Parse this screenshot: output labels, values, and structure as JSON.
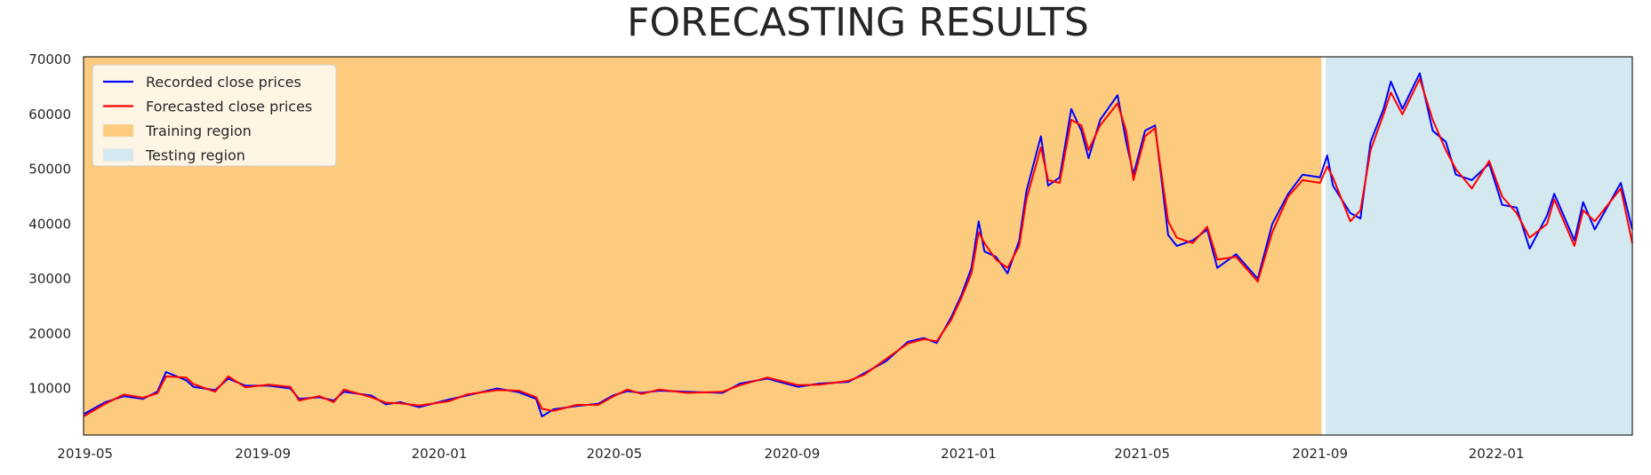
{
  "chart_data": {
    "type": "line",
    "title": "FORECASTING RESULTS",
    "xlabel": "",
    "ylabel": "",
    "x_range": [
      "2019-04-30",
      "2022-04-05"
    ],
    "ylim": [
      1500,
      70500
    ],
    "x_ticks": [
      "2019-05",
      "2019-09",
      "2020-01",
      "2020-05",
      "2020-09",
      "2021-01",
      "2021-05",
      "2021-09",
      "2022-01"
    ],
    "y_ticks": [
      10000,
      20000,
      30000,
      40000,
      50000,
      60000,
      70000
    ],
    "grid": false,
    "legend_position": "top-left",
    "regions": [
      {
        "name": "Training region",
        "start": "2019-04-30",
        "end": "2021-09-02",
        "color": "#fdcb7e"
      },
      {
        "name": "Testing region",
        "start": "2021-09-05",
        "end": "2022-04-05",
        "color": "#d3e8ef"
      }
    ],
    "region_gap_color": "#ffffff",
    "series": [
      {
        "name": "Recorded close prices",
        "color": "#0000ff",
        "points": [
          [
            "2019-04-30",
            5300
          ],
          [
            "2019-05-15",
            7500
          ],
          [
            "2019-05-28",
            8600
          ],
          [
            "2019-06-10",
            8100
          ],
          [
            "2019-06-20",
            9400
          ],
          [
            "2019-06-26",
            13000
          ],
          [
            "2019-07-10",
            11500
          ],
          [
            "2019-07-15",
            10300
          ],
          [
            "2019-07-30",
            9700
          ],
          [
            "2019-08-08",
            11800
          ],
          [
            "2019-08-20",
            10500
          ],
          [
            "2019-09-05",
            10500
          ],
          [
            "2019-09-20",
            10000
          ],
          [
            "2019-09-26",
            8100
          ],
          [
            "2019-10-10",
            8400
          ],
          [
            "2019-10-20",
            7800
          ],
          [
            "2019-10-27",
            9400
          ],
          [
            "2019-11-15",
            8700
          ],
          [
            "2019-11-25",
            7100
          ],
          [
            "2019-12-05",
            7500
          ],
          [
            "2019-12-18",
            6600
          ],
          [
            "2020-01-08",
            8000
          ],
          [
            "2020-01-20",
            8700
          ],
          [
            "2020-02-10",
            10000
          ],
          [
            "2020-02-25",
            9300
          ],
          [
            "2020-03-08",
            8100
          ],
          [
            "2020-03-12",
            4900
          ],
          [
            "2020-03-20",
            6200
          ],
          [
            "2020-04-05",
            6800
          ],
          [
            "2020-04-20",
            7200
          ],
          [
            "2020-04-30",
            8700
          ],
          [
            "2020-05-10",
            9500
          ],
          [
            "2020-05-20",
            9200
          ],
          [
            "2020-06-01",
            9600
          ],
          [
            "2020-06-20",
            9400
          ],
          [
            "2020-07-15",
            9200
          ],
          [
            "2020-07-27",
            10900
          ],
          [
            "2020-08-15",
            11800
          ],
          [
            "2020-09-05",
            10300
          ],
          [
            "2020-09-20",
            10900
          ],
          [
            "2020-10-10",
            11200
          ],
          [
            "2020-10-21",
            12800
          ],
          [
            "2020-11-05",
            15000
          ],
          [
            "2020-11-20",
            18500
          ],
          [
            "2020-12-01",
            19200
          ],
          [
            "2020-12-10",
            18300
          ],
          [
            "2020-12-20",
            23000
          ],
          [
            "2020-12-27",
            27000
          ],
          [
            "2021-01-03",
            32000
          ],
          [
            "2021-01-08",
            40500
          ],
          [
            "2021-01-12",
            35000
          ],
          [
            "2021-01-20",
            34000
          ],
          [
            "2021-01-28",
            31000
          ],
          [
            "2021-02-05",
            37000
          ],
          [
            "2021-02-10",
            46000
          ],
          [
            "2021-02-20",
            56000
          ],
          [
            "2021-02-25",
            47000
          ],
          [
            "2021-03-05",
            48500
          ],
          [
            "2021-03-13",
            61000
          ],
          [
            "2021-03-20",
            57000
          ],
          [
            "2021-03-25",
            52000
          ],
          [
            "2021-04-02",
            59000
          ],
          [
            "2021-04-14",
            63500
          ],
          [
            "2021-04-20",
            55000
          ],
          [
            "2021-04-25",
            49000
          ],
          [
            "2021-05-03",
            57000
          ],
          [
            "2021-05-10",
            58000
          ],
          [
            "2021-05-19",
            38000
          ],
          [
            "2021-05-25",
            36000
          ],
          [
            "2021-06-05",
            37000
          ],
          [
            "2021-06-15",
            39000
          ],
          [
            "2021-06-22",
            32000
          ],
          [
            "2021-07-05",
            34500
          ],
          [
            "2021-07-20",
            30000
          ],
          [
            "2021-07-30",
            40000
          ],
          [
            "2021-08-10",
            45500
          ],
          [
            "2021-08-20",
            49000
          ],
          [
            "2021-09-01",
            48500
          ],
          [
            "2021-09-06",
            52500
          ],
          [
            "2021-09-10",
            47000
          ],
          [
            "2021-09-22",
            42000
          ],
          [
            "2021-09-29",
            41000
          ],
          [
            "2021-10-06",
            55000
          ],
          [
            "2021-10-15",
            61000
          ],
          [
            "2021-10-20",
            66000
          ],
          [
            "2021-10-28",
            61000
          ],
          [
            "2021-11-09",
            67500
          ],
          [
            "2021-11-18",
            57000
          ],
          [
            "2021-11-27",
            55000
          ],
          [
            "2021-12-04",
            49000
          ],
          [
            "2021-12-15",
            48000
          ],
          [
            "2021-12-27",
            51000
          ],
          [
            "2022-01-05",
            43500
          ],
          [
            "2022-01-15",
            43000
          ],
          [
            "2022-01-24",
            35500
          ],
          [
            "2022-02-05",
            41500
          ],
          [
            "2022-02-10",
            45500
          ],
          [
            "2022-02-24",
            37000
          ],
          [
            "2022-03-02",
            44000
          ],
          [
            "2022-03-10",
            39000
          ],
          [
            "2022-03-28",
            47500
          ],
          [
            "2022-04-05",
            39000
          ]
        ]
      },
      {
        "name": "Forecasted close prices",
        "color": "#ff0000",
        "points": [
          [
            "2019-04-30",
            4900
          ],
          [
            "2019-05-15",
            7200
          ],
          [
            "2019-05-28",
            8900
          ],
          [
            "2019-06-10",
            8300
          ],
          [
            "2019-06-20",
            9100
          ],
          [
            "2019-06-26",
            12200
          ],
          [
            "2019-07-10",
            12000
          ],
          [
            "2019-07-15",
            10800
          ],
          [
            "2019-07-30",
            9400
          ],
          [
            "2019-08-08",
            12200
          ],
          [
            "2019-08-20",
            10200
          ],
          [
            "2019-09-05",
            10700
          ],
          [
            "2019-09-20",
            10300
          ],
          [
            "2019-09-26",
            7800
          ],
          [
            "2019-10-10",
            8600
          ],
          [
            "2019-10-20",
            7500
          ],
          [
            "2019-10-27",
            9800
          ],
          [
            "2019-11-15",
            8400
          ],
          [
            "2019-11-25",
            7400
          ],
          [
            "2019-12-05",
            7300
          ],
          [
            "2019-12-18",
            6900
          ],
          [
            "2020-01-08",
            7700
          ],
          [
            "2020-01-20",
            8900
          ],
          [
            "2020-02-10",
            9700
          ],
          [
            "2020-02-25",
            9600
          ],
          [
            "2020-03-08",
            8400
          ],
          [
            "2020-03-12",
            6300
          ],
          [
            "2020-03-20",
            5900
          ],
          [
            "2020-04-05",
            7000
          ],
          [
            "2020-04-20",
            7000
          ],
          [
            "2020-04-30",
            8500
          ],
          [
            "2020-05-10",
            9800
          ],
          [
            "2020-05-20",
            9000
          ],
          [
            "2020-06-01",
            9800
          ],
          [
            "2020-06-20",
            9200
          ],
          [
            "2020-07-15",
            9400
          ],
          [
            "2020-07-27",
            10600
          ],
          [
            "2020-08-15",
            12000
          ],
          [
            "2020-09-05",
            10600
          ],
          [
            "2020-09-20",
            10700
          ],
          [
            "2020-10-10",
            11400
          ],
          [
            "2020-10-21",
            12500
          ],
          [
            "2020-11-05",
            15400
          ],
          [
            "2020-11-20",
            18200
          ],
          [
            "2020-12-01",
            19000
          ],
          [
            "2020-12-10",
            18600
          ],
          [
            "2020-12-20",
            22500
          ],
          [
            "2020-12-27",
            26500
          ],
          [
            "2021-01-03",
            31000
          ],
          [
            "2021-01-08",
            38500
          ],
          [
            "2021-01-12",
            36500
          ],
          [
            "2021-01-20",
            33500
          ],
          [
            "2021-01-28",
            32000
          ],
          [
            "2021-02-05",
            36000
          ],
          [
            "2021-02-10",
            44500
          ],
          [
            "2021-02-20",
            54000
          ],
          [
            "2021-02-25",
            48000
          ],
          [
            "2021-03-05",
            47500
          ],
          [
            "2021-03-13",
            59000
          ],
          [
            "2021-03-20",
            58000
          ],
          [
            "2021-03-25",
            53500
          ],
          [
            "2021-04-02",
            58000
          ],
          [
            "2021-04-14",
            62000
          ],
          [
            "2021-04-20",
            57000
          ],
          [
            "2021-04-25",
            48000
          ],
          [
            "2021-05-03",
            56000
          ],
          [
            "2021-05-10",
            57500
          ],
          [
            "2021-05-19",
            40500
          ],
          [
            "2021-05-25",
            37500
          ],
          [
            "2021-06-05",
            36500
          ],
          [
            "2021-06-15",
            39500
          ],
          [
            "2021-06-22",
            33500
          ],
          [
            "2021-07-05",
            34000
          ],
          [
            "2021-07-20",
            29500
          ],
          [
            "2021-07-30",
            38500
          ],
          [
            "2021-08-10",
            45000
          ],
          [
            "2021-08-20",
            48000
          ],
          [
            "2021-09-01",
            47500
          ],
          [
            "2021-09-06",
            50500
          ],
          [
            "2021-09-10",
            48500
          ],
          [
            "2021-09-22",
            40500
          ],
          [
            "2021-09-29",
            42500
          ],
          [
            "2021-10-06",
            53500
          ],
          [
            "2021-10-15",
            60000
          ],
          [
            "2021-10-20",
            64000
          ],
          [
            "2021-10-28",
            60000
          ],
          [
            "2021-11-09",
            66500
          ],
          [
            "2021-11-18",
            59000
          ],
          [
            "2021-11-27",
            53500
          ],
          [
            "2021-12-04",
            50000
          ],
          [
            "2021-12-15",
            46500
          ],
          [
            "2021-12-27",
            51500
          ],
          [
            "2022-01-05",
            45000
          ],
          [
            "2022-01-15",
            42000
          ],
          [
            "2022-01-24",
            37500
          ],
          [
            "2022-02-05",
            40000
          ],
          [
            "2022-02-10",
            44500
          ],
          [
            "2022-02-24",
            36000
          ],
          [
            "2022-03-02",
            42500
          ],
          [
            "2022-03-10",
            40500
          ],
          [
            "2022-03-28",
            46500
          ],
          [
            "2022-04-05",
            36500
          ]
        ]
      }
    ]
  }
}
